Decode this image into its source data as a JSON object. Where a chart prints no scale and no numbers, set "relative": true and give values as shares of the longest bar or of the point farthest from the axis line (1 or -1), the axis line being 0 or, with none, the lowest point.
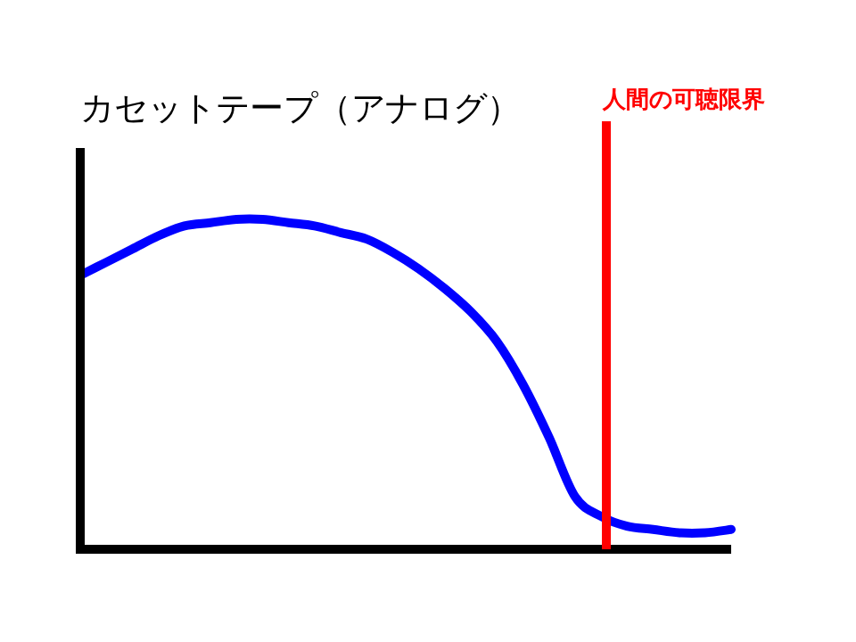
{
  "chart_data": {
    "type": "line",
    "title": "カセットテープ（アナログ）",
    "relative": true,
    "categories": [
      null,
      null,
      null,
      null,
      null,
      null,
      null,
      null,
      null,
      null,
      null,
      null,
      null,
      null,
      null,
      null,
      null,
      null,
      null,
      null,
      null,
      null,
      null,
      null,
      null,
      null
    ],
    "series": [
      {
        "color": "#0000ff",
        "values": [
          0.83,
          0.87,
          0.91,
          0.95,
          0.98,
          0.99,
          1,
          1,
          0.99,
          0.98,
          0.96,
          0.94,
          0.9,
          0.85,
          0.79,
          0.72,
          0.63,
          0.5,
          0.34,
          0.16,
          0.1,
          0.07,
          0.06,
          0.05,
          0.05,
          0.06
        ]
      }
    ],
    "annotations": [
      "人間の可聴限界"
    ],
    "grid": false,
    "legend": false,
    "marker": "none",
    "line_style": "solid"
  }
}
